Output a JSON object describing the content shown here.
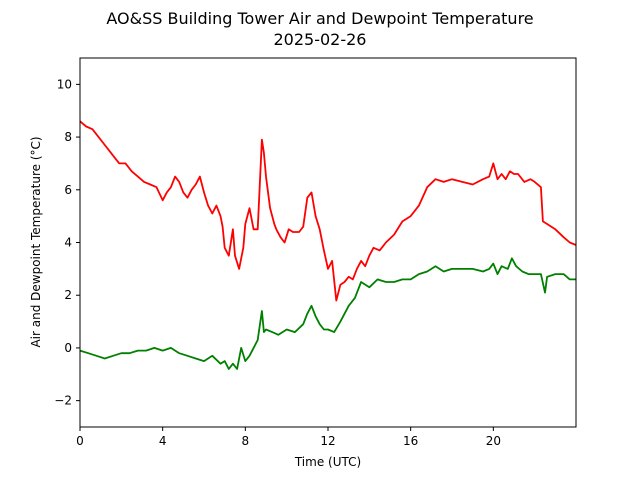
{
  "chart_data": {
    "type": "line",
    "title": "AO&SS Building Tower Air and Dewpoint Temperature",
    "subtitle": "2025-02-26",
    "xlabel": "Time (UTC)",
    "ylabel": "Air and Dewpoint Temperature (°C)",
    "xlim": [
      0,
      24
    ],
    "ylim": [
      -3,
      11
    ],
    "xticks": [
      0,
      4,
      8,
      12,
      16,
      20
    ],
    "yticks": [
      -2,
      0,
      2,
      4,
      6,
      8,
      10
    ],
    "grid": false,
    "colors": {
      "air": "#ff0000",
      "dewpoint": "#008000"
    },
    "series": [
      {
        "key": "air",
        "color": "#ff0000",
        "x": [
          0,
          0.3,
          0.6,
          0.9,
          1.2,
          1.5,
          1.7,
          1.9,
          2.2,
          2.5,
          2.8,
          3.1,
          3.4,
          3.7,
          4.0,
          4.2,
          4.4,
          4.6,
          4.8,
          5.0,
          5.2,
          5.4,
          5.6,
          5.8,
          6.0,
          6.2,
          6.4,
          6.6,
          6.8,
          6.9,
          7.0,
          7.2,
          7.4,
          7.5,
          7.7,
          7.9,
          8.0,
          8.2,
          8.4,
          8.6,
          8.8,
          8.9,
          9.0,
          9.2,
          9.4,
          9.5,
          9.7,
          9.9,
          10.1,
          10.3,
          10.6,
          10.8,
          11.0,
          11.2,
          11.4,
          11.6,
          11.8,
          12.0,
          12.2,
          12.4,
          12.6,
          12.8,
          13.0,
          13.2,
          13.4,
          13.6,
          13.8,
          14.0,
          14.2,
          14.5,
          14.8,
          15.2,
          15.6,
          16.0,
          16.4,
          16.8,
          17.2,
          17.6,
          18.0,
          18.5,
          19.0,
          19.5,
          19.8,
          20.0,
          20.2,
          20.4,
          20.6,
          20.8,
          21.0,
          21.2,
          21.5,
          21.8,
          22.0,
          22.3,
          22.4,
          22.6,
          23.0,
          23.4,
          23.7,
          24.0
        ],
        "y": [
          8.6,
          8.4,
          8.3,
          8.0,
          7.7,
          7.4,
          7.2,
          7.0,
          7.0,
          6.7,
          6.5,
          6.3,
          6.2,
          6.1,
          5.6,
          5.9,
          6.1,
          6.5,
          6.3,
          5.9,
          5.7,
          6.0,
          6.2,
          6.5,
          5.9,
          5.4,
          5.1,
          5.4,
          5.0,
          4.6,
          3.8,
          3.5,
          4.5,
          3.5,
          3.0,
          3.8,
          4.7,
          5.3,
          4.5,
          4.5,
          7.9,
          7.4,
          6.5,
          5.3,
          4.7,
          4.5,
          4.2,
          4.0,
          4.5,
          4.4,
          4.4,
          4.6,
          5.7,
          5.9,
          5.0,
          4.5,
          3.7,
          3.0,
          3.3,
          1.8,
          2.4,
          2.5,
          2.7,
          2.6,
          3.0,
          3.3,
          3.1,
          3.5,
          3.8,
          3.7,
          4.0,
          4.3,
          4.8,
          5.0,
          5.4,
          6.1,
          6.4,
          6.3,
          6.4,
          6.3,
          6.2,
          6.4,
          6.5,
          7.0,
          6.4,
          6.6,
          6.4,
          6.7,
          6.6,
          6.6,
          6.3,
          6.4,
          6.3,
          6.1,
          4.8,
          4.7,
          4.5,
          4.2,
          4.0,
          3.9
        ]
      },
      {
        "key": "dewpoint",
        "color": "#008000",
        "x": [
          0,
          0.4,
          0.8,
          1.2,
          1.6,
          2.0,
          2.4,
          2.8,
          3.2,
          3.6,
          4.0,
          4.4,
          4.8,
          5.2,
          5.6,
          6.0,
          6.4,
          6.8,
          7.0,
          7.2,
          7.4,
          7.6,
          7.8,
          8.0,
          8.2,
          8.4,
          8.6,
          8.8,
          8.9,
          9.0,
          9.3,
          9.6,
          10.0,
          10.4,
          10.8,
          11.0,
          11.2,
          11.4,
          11.6,
          11.8,
          12.0,
          12.3,
          12.6,
          13.0,
          13.3,
          13.6,
          14.0,
          14.4,
          14.8,
          15.2,
          15.6,
          16.0,
          16.4,
          16.8,
          17.2,
          17.6,
          18.0,
          18.5,
          19.0,
          19.5,
          19.8,
          20.0,
          20.2,
          20.4,
          20.7,
          20.9,
          21.1,
          21.4,
          21.7,
          22.0,
          22.3,
          22.5,
          22.6,
          23.0,
          23.4,
          23.7,
          24.0
        ],
        "y": [
          -0.1,
          -0.2,
          -0.3,
          -0.4,
          -0.3,
          -0.2,
          -0.2,
          -0.1,
          -0.1,
          0.0,
          -0.1,
          0.0,
          -0.2,
          -0.3,
          -0.4,
          -0.5,
          -0.3,
          -0.6,
          -0.5,
          -0.8,
          -0.6,
          -0.8,
          0.0,
          -0.5,
          -0.3,
          0.0,
          0.3,
          1.4,
          0.6,
          0.7,
          0.6,
          0.5,
          0.7,
          0.6,
          0.9,
          1.3,
          1.6,
          1.2,
          0.9,
          0.7,
          0.7,
          0.6,
          1.0,
          1.6,
          1.9,
          2.5,
          2.3,
          2.6,
          2.5,
          2.5,
          2.6,
          2.6,
          2.8,
          2.9,
          3.1,
          2.9,
          3.0,
          3.0,
          3.0,
          2.9,
          3.0,
          3.2,
          2.8,
          3.1,
          3.0,
          3.4,
          3.1,
          2.9,
          2.8,
          2.8,
          2.8,
          2.1,
          2.7,
          2.8,
          2.8,
          2.6,
          2.6
        ]
      }
    ]
  }
}
